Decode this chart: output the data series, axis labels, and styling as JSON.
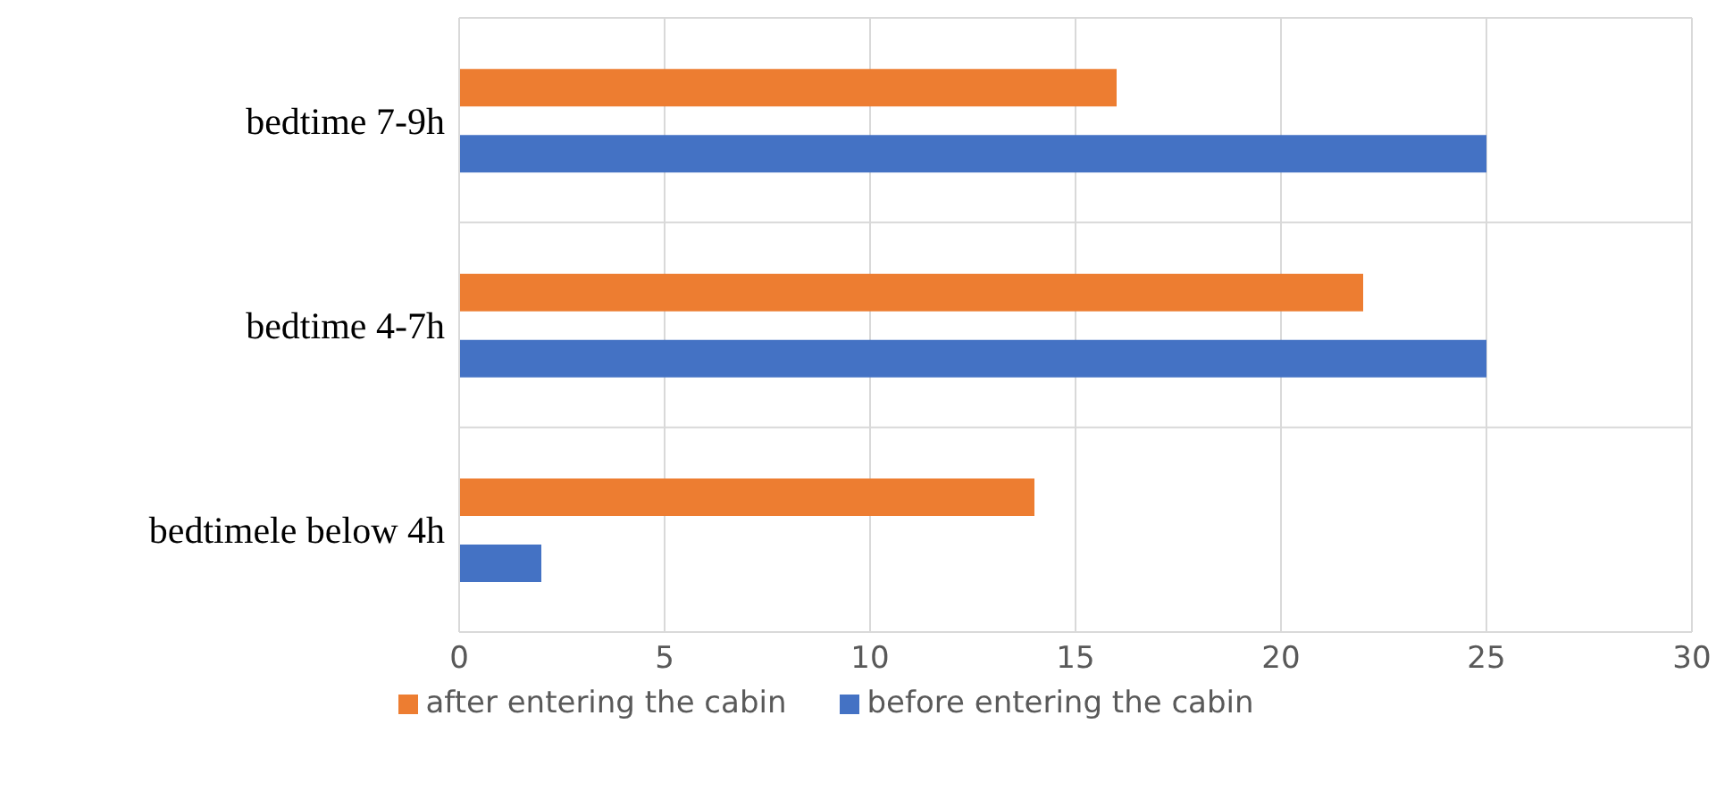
{
  "chart_data": {
    "type": "bar",
    "orientation": "horizontal",
    "categories": [
      "bedtime 7-9h",
      "bedtime 4-7h",
      "bedtimele below 4h"
    ],
    "series": [
      {
        "name": "after entering the cabin",
        "color": "#ed7d31",
        "values": [
          16,
          22,
          14
        ]
      },
      {
        "name": "before entering the cabin",
        "color": "#4472c4",
        "values": [
          25,
          25,
          2
        ]
      }
    ],
    "xlim": [
      0,
      30
    ],
    "xticks": [
      0,
      5,
      10,
      15,
      20,
      25,
      30
    ],
    "grid": true,
    "legend": "bottom"
  }
}
